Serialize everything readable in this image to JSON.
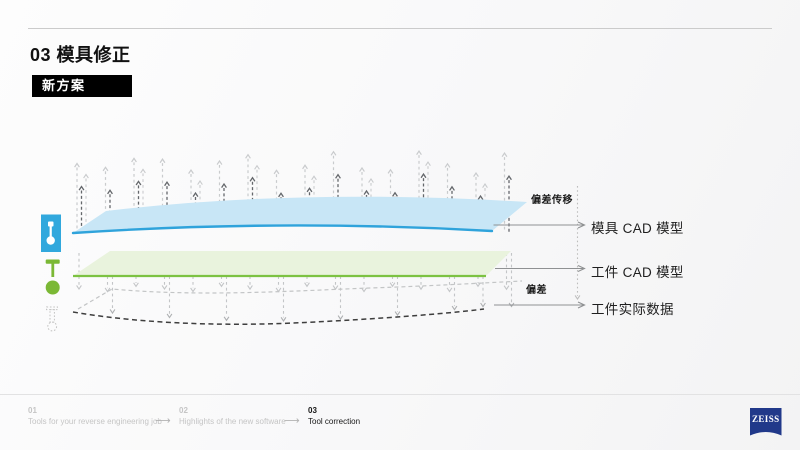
{
  "slide": {
    "title": "03 模具修正",
    "badge": "新方案"
  },
  "diagram": {
    "annotations": {
      "transfer": "偏差传移",
      "deviation": "偏差"
    },
    "layers": [
      {
        "id": "mold-cad",
        "label": "模具 CAD 模型",
        "stroke": "#2fa3db",
        "fill": "#c8e6f6"
      },
      {
        "id": "workpiece-cad",
        "label": "工件 CAD 模型",
        "stroke": "#7cc242",
        "fill": "#e9f3dd"
      },
      {
        "id": "workpiece-actual",
        "label": "工件实际数据",
        "stroke": "#3e3e3e",
        "fill": "none"
      }
    ],
    "icons": [
      {
        "name": "mold-tool-icon",
        "color": "#31a8dd"
      },
      {
        "name": "probe-icon",
        "color": "#7bb835"
      },
      {
        "name": "probe-ghost-icon",
        "color": "#c3c3c3"
      }
    ],
    "arrow_colors": {
      "dark_up": "#64676b",
      "light_up": "#c9cbcd",
      "light_down": "#c3c5c7",
      "label_arrow": "#8f9193",
      "dotted_guide": "#bdbdbd"
    }
  },
  "footer": {
    "separator": "⟶",
    "steps": [
      {
        "num": "01",
        "label": "Tools for your reverse engineering job",
        "active": false
      },
      {
        "num": "02",
        "label": "Highlights of the new software",
        "active": false
      },
      {
        "num": "03",
        "label": "Tool correction",
        "active": true
      }
    ],
    "logo_text": "ZEISS",
    "logo_color": "#21398a"
  }
}
